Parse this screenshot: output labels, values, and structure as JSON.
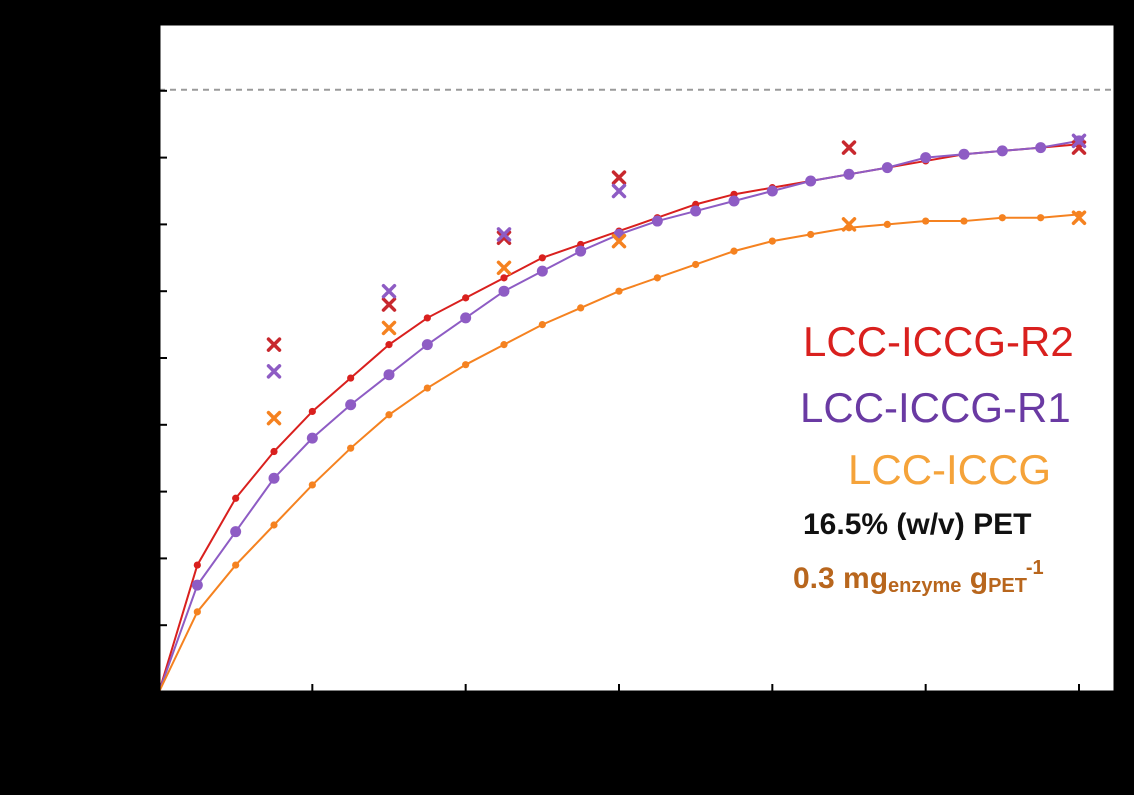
{
  "chart_data": {
    "type": "line",
    "x_ticks": [
      "0",
      "4",
      "8",
      "12",
      "16",
      "20",
      "24"
    ],
    "xlim": [
      0,
      24
    ],
    "y_tick_count": 10,
    "ylim": [
      0,
      100
    ],
    "reference_line_y": 90,
    "grid": false,
    "legend_placement": "right",
    "series": [
      {
        "name": "LCC-ICCG-R2",
        "color": "#d9201e",
        "style": "small-dot-line",
        "x": [
          0,
          1,
          2,
          3,
          4,
          5,
          6,
          7,
          8,
          9,
          10,
          11,
          12,
          13,
          14,
          15,
          16,
          17,
          18,
          19,
          20,
          21,
          22,
          23,
          24
        ],
        "y": [
          0,
          19,
          29,
          36,
          42,
          47,
          52,
          56,
          59,
          62,
          65,
          67,
          69,
          71,
          73,
          74.5,
          75.5,
          76.5,
          77.5,
          78.5,
          79.5,
          80.5,
          81,
          81.5,
          82
        ]
      },
      {
        "name": "LCC-ICCG-R1",
        "color": "#8e5cc4",
        "style": "large-dot-line",
        "x": [
          0,
          1,
          2,
          3,
          4,
          5,
          6,
          7,
          8,
          9,
          10,
          11,
          12,
          13,
          14,
          15,
          16,
          17,
          18,
          19,
          20,
          21,
          22,
          23,
          24
        ],
        "y": [
          0,
          16,
          24,
          32,
          38,
          43,
          47.5,
          52,
          56,
          60,
          63,
          66,
          68.5,
          70.5,
          72,
          73.5,
          75,
          76.5,
          77.5,
          78.5,
          80,
          80.5,
          81,
          81.5,
          82.5
        ]
      },
      {
        "name": "LCC-ICCG",
        "color": "#f58220",
        "style": "small-dot-line",
        "x": [
          0,
          1,
          2,
          3,
          4,
          5,
          6,
          7,
          8,
          9,
          10,
          11,
          12,
          13,
          14,
          15,
          16,
          17,
          18,
          19,
          20,
          21,
          22,
          23,
          24
        ],
        "y": [
          0,
          12,
          19,
          25,
          31,
          36.5,
          41.5,
          45.5,
          49,
          52,
          55,
          57.5,
          60,
          62,
          64,
          66,
          67.5,
          68.5,
          69.5,
          70,
          70.5,
          70.5,
          71,
          71,
          71.5
        ]
      },
      {
        "name": "LCC-ICCG-R2",
        "color": "#c8282e",
        "style": "cross",
        "x": [
          3,
          6,
          9,
          12,
          18,
          24
        ],
        "y": [
          52,
          58,
          68,
          77,
          81.5,
          81.5
        ]
      },
      {
        "name": "LCC-ICCG-R1",
        "color": "#8e5cc4",
        "style": "cross",
        "x": [
          3,
          6,
          9,
          12,
          24
        ],
        "y": [
          48,
          60,
          68.5,
          75,
          82.5
        ]
      },
      {
        "name": "LCC-ICCG",
        "color": "#f58220",
        "style": "cross",
        "x": [
          3,
          6,
          9,
          12,
          18,
          24
        ],
        "y": [
          41,
          54.5,
          63.5,
          67.5,
          70,
          71
        ]
      }
    ],
    "legend": {
      "r2": "LCC-ICCG-R2",
      "r1": "LCC-ICCG-R1",
      "base": "LCC-ICCG"
    },
    "conditions": {
      "pet": "16.5% (w/v) PET",
      "load_prefix": "0.3 mg",
      "load_sub1": "enzyme",
      "load_mid": " g",
      "load_sub2": "PET",
      "load_sup": "-1"
    }
  }
}
